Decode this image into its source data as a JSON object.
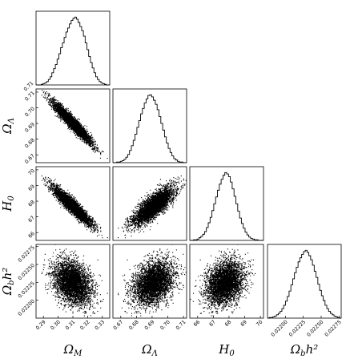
{
  "chart_data": {
    "type": "corner",
    "parameters": [
      {
        "key": "om",
        "label": "Ω_M",
        "display": [
          "Ω",
          "M",
          ""
        ],
        "range": [
          0.285,
          0.335
        ],
        "mean": 0.3095,
        "sd": 0.0065,
        "ticks": [
          "0.29",
          "0.30",
          "0.31",
          "0.32",
          "0.33"
        ]
      },
      {
        "key": "ol",
        "label": "Ω_Λ",
        "display": [
          "Ω",
          "Λ",
          ""
        ],
        "range": [
          0.665,
          0.712
        ],
        "mean": 0.6905,
        "sd": 0.0065,
        "ticks": [
          "0.67",
          "0.68",
          "0.69",
          "0.70",
          "0.71"
        ]
      },
      {
        "key": "h0",
        "label": "H_0",
        "display": [
          "H",
          "0",
          ""
        ],
        "range": [
          65.5,
          70.2
        ],
        "mean": 67.7,
        "sd": 0.6,
        "ticks": [
          "66",
          "67",
          "68",
          "69",
          "70"
        ]
      },
      {
        "key": "obh",
        "label": "Ω_b h^2",
        "display": [
          "Ω",
          "b",
          "h²"
        ],
        "range": [
          0.02175,
          0.02278
        ],
        "mean": 0.02225,
        "sd": 0.00015,
        "ticks": [
          "0.02200",
          "0.02225",
          "0.02250",
          "0.02275"
        ]
      }
    ],
    "correlations": {
      "om_ol": -0.95,
      "om_h0": -0.93,
      "om_obh": -0.3,
      "ol_h0": 0.8,
      "ol_obh": 0.3,
      "h0_obh": 0.25
    },
    "n_samples": 4000,
    "histograms": {
      "om": [
        0,
        0,
        0,
        1,
        2,
        3,
        5,
        8,
        12,
        18,
        24,
        30,
        38,
        46,
        55,
        62,
        70,
        78,
        84,
        90,
        95,
        98,
        100,
        97,
        92,
        86,
        80,
        72,
        62,
        52,
        42,
        33,
        25,
        18,
        12,
        8,
        5,
        3,
        2,
        1,
        0,
        0
      ],
      "ol": [
        0,
        0,
        1,
        1,
        2,
        3,
        5,
        8,
        12,
        18,
        25,
        33,
        42,
        52,
        62,
        72,
        80,
        88,
        94,
        99,
        100,
        97,
        92,
        86,
        78,
        68,
        58,
        48,
        38,
        29,
        21,
        15,
        10,
        6,
        4,
        2,
        1,
        1,
        0,
        0
      ],
      "h0": [
        0,
        0,
        1,
        1,
        2,
        4,
        6,
        9,
        13,
        19,
        26,
        34,
        44,
        54,
        64,
        74,
        83,
        90,
        96,
        100,
        98,
        94,
        86,
        76,
        65,
        54,
        43,
        33,
        25,
        18,
        12,
        8,
        5,
        3,
        2,
        1,
        1,
        0,
        0,
        0
      ],
      "obh": [
        0,
        1,
        1,
        2,
        3,
        5,
        7,
        10,
        14,
        19,
        25,
        32,
        40,
        49,
        58,
        67,
        75,
        83,
        89,
        94,
        98,
        100,
        97,
        92,
        86,
        78,
        69,
        60,
        50,
        41,
        33,
        26,
        19,
        14,
        10,
        7,
        5,
        3,
        2,
        1,
        0
      ]
    }
  }
}
